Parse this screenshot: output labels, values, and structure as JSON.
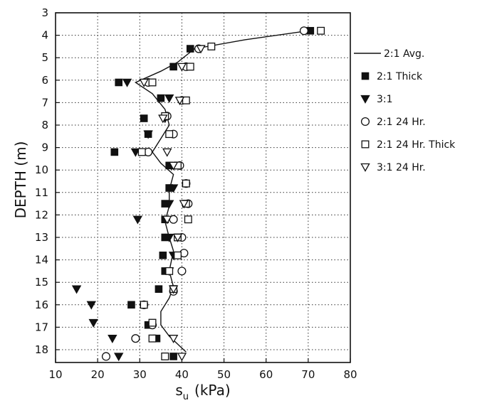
{
  "chart_data": {
    "type": "scatter",
    "xlabel": "s",
    "xlabel_sub": "u",
    "xlabel_unit": "(kPa)",
    "ylabel": "DEPTH (m)",
    "xlim": [
      10,
      80
    ],
    "ylim": [
      3,
      18.5
    ],
    "y_inverted": true,
    "grid": true,
    "x_ticks": [
      10,
      20,
      30,
      40,
      50,
      60,
      70,
      80
    ],
    "y_ticks": [
      3,
      4,
      5,
      6,
      7,
      8,
      9,
      10,
      11,
      12,
      13,
      14,
      15,
      16,
      17,
      18
    ],
    "legend_position": "right",
    "series": [
      {
        "name": "2:1 Avg.",
        "marker": "line",
        "points": [
          [
            70,
            3.8
          ],
          [
            55,
            4.2
          ],
          [
            43,
            4.6
          ],
          [
            39,
            5.2
          ],
          [
            35,
            5.6
          ],
          [
            29,
            6.1
          ],
          [
            33,
            6.6
          ],
          [
            36,
            7.3
          ],
          [
            37,
            8.0
          ],
          [
            35,
            8.6
          ],
          [
            33,
            9.2
          ],
          [
            35,
            9.7
          ],
          [
            38,
            10.2
          ],
          [
            37,
            10.9
          ],
          [
            37,
            11.6
          ],
          [
            36,
            12.3
          ],
          [
            37,
            13.0
          ],
          [
            38,
            13.6
          ],
          [
            37,
            14.5
          ],
          [
            38,
            15.2
          ],
          [
            37,
            15.7
          ],
          [
            35,
            16.3
          ],
          [
            35,
            16.9
          ],
          [
            37,
            17.4
          ],
          [
            41,
            18.1
          ]
        ]
      },
      {
        "name": "2:1 Thick",
        "marker": "filled-square",
        "points": [
          [
            70.5,
            3.8
          ],
          [
            42,
            4.6
          ],
          [
            38,
            5.4
          ],
          [
            25,
            6.1
          ],
          [
            35,
            6.8
          ],
          [
            31,
            7.7
          ],
          [
            32,
            8.4
          ],
          [
            24,
            9.2
          ],
          [
            37,
            9.8
          ],
          [
            37,
            10.8
          ],
          [
            36,
            11.5
          ],
          [
            36,
            12.2
          ],
          [
            36,
            13.0
          ],
          [
            35.5,
            13.8
          ],
          [
            36,
            14.5
          ],
          [
            34.5,
            15.3
          ],
          [
            28,
            16.0
          ],
          [
            32,
            16.9
          ],
          [
            34,
            17.5
          ],
          [
            38,
            18.3
          ]
        ]
      },
      {
        "name": "3:1",
        "marker": "filled-triangle-down",
        "points": [
          [
            27,
            6.1
          ],
          [
            37,
            6.8
          ],
          [
            36,
            7.7
          ],
          [
            32,
            8.4
          ],
          [
            29,
            9.2
          ],
          [
            37.5,
            9.8
          ],
          [
            38,
            10.8
          ],
          [
            37,
            11.5
          ],
          [
            29.5,
            12.2
          ],
          [
            37,
            13.0
          ],
          [
            38,
            13.8
          ],
          [
            37,
            14.5
          ],
          [
            15,
            15.3
          ],
          [
            18.5,
            16.0
          ],
          [
            19,
            16.8
          ],
          [
            23.5,
            17.5
          ],
          [
            25,
            18.3
          ]
        ]
      },
      {
        "name": "2:1 24 Hr.",
        "marker": "open-circle",
        "points": [
          [
            69,
            3.8
          ],
          [
            44,
            4.6
          ],
          [
            41,
            5.4
          ],
          [
            32,
            6.1
          ],
          [
            40,
            6.9
          ],
          [
            36.5,
            7.6
          ],
          [
            38,
            8.4
          ],
          [
            32,
            9.2
          ],
          [
            39.5,
            9.8
          ],
          [
            41,
            10.6
          ],
          [
            41.5,
            11.5
          ],
          [
            38,
            12.2
          ],
          [
            40,
            13.0
          ],
          [
            40.5,
            13.7
          ],
          [
            40,
            14.5
          ],
          [
            38,
            15.4
          ],
          [
            31,
            16.0
          ],
          [
            33,
            16.9
          ],
          [
            29,
            17.5
          ],
          [
            22,
            18.3
          ]
        ]
      },
      {
        "name": "2:1 24 Hr. Thick",
        "marker": "open-square",
        "points": [
          [
            73,
            3.8
          ],
          [
            47,
            4.5
          ],
          [
            42,
            5.4
          ],
          [
            33,
            6.1
          ],
          [
            41,
            6.9
          ],
          [
            36,
            7.6
          ],
          [
            37,
            8.4
          ],
          [
            30.5,
            9.2
          ],
          [
            39,
            9.8
          ],
          [
            41,
            10.6
          ],
          [
            41,
            11.5
          ],
          [
            41.5,
            12.2
          ],
          [
            39,
            13.0
          ],
          [
            39,
            13.8
          ],
          [
            37,
            14.5
          ],
          [
            38,
            15.3
          ],
          [
            31,
            16.0
          ],
          [
            33,
            16.8
          ],
          [
            33,
            17.5
          ],
          [
            36,
            18.3
          ]
        ]
      },
      {
        "name": "3:1 24 Hr.",
        "marker": "open-triangle-down",
        "points": [
          [
            44.5,
            4.6
          ],
          [
            40,
            5.4
          ],
          [
            31,
            6.1
          ],
          [
            39.5,
            6.9
          ],
          [
            35.5,
            7.7
          ],
          [
            36.5,
            9.2
          ],
          [
            38,
            9.8
          ],
          [
            40.5,
            11.5
          ],
          [
            36.5,
            12.2
          ],
          [
            39,
            13.0
          ],
          [
            38,
            15.3
          ],
          [
            38,
            17.5
          ],
          [
            40,
            18.3
          ]
        ]
      }
    ]
  }
}
